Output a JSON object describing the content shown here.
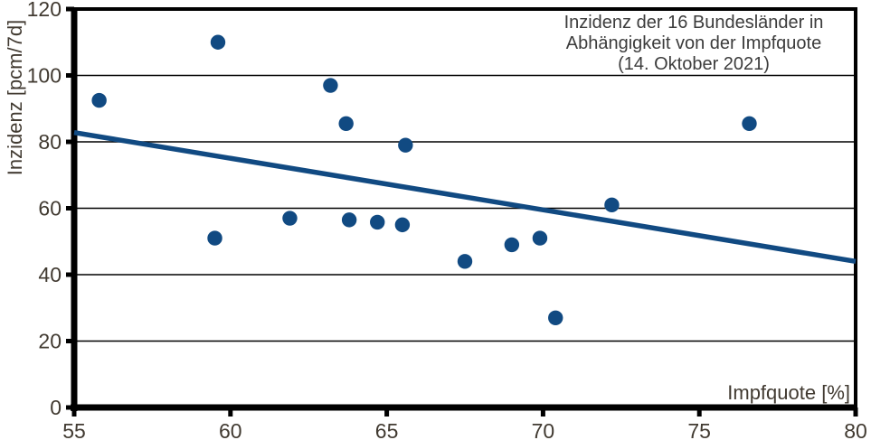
{
  "chart_data": {
    "type": "scatter",
    "title": "Inzidenz der 16 Bundesländer in Abhängigkeit von der Impfquote (14. Oktober 2021)",
    "title_lines": [
      "Inzidenz der 16 Bundesländer in",
      "Abhängigkeit von der Impfquote",
      "(14. Oktober 2021)"
    ],
    "xlabel": "Impfquote [%]",
    "ylabel": "Inzidenz [pcm/7d]",
    "xlim": [
      55,
      80
    ],
    "ylim": [
      0,
      120
    ],
    "x_ticks": [
      55,
      60,
      65,
      70,
      75,
      80
    ],
    "y_ticks": [
      0,
      20,
      40,
      60,
      80,
      100,
      120
    ],
    "grid": "horizontal",
    "legend": "none",
    "series": [
      {
        "name": "Bundesländer",
        "points": [
          [
            55.8,
            92.5
          ],
          [
            59.5,
            51
          ],
          [
            59.6,
            110
          ],
          [
            61.9,
            57
          ],
          [
            63.2,
            97
          ],
          [
            63.7,
            85.5
          ],
          [
            63.8,
            56.5
          ],
          [
            64.7,
            55.8
          ],
          [
            65.5,
            55
          ],
          [
            65.6,
            79
          ],
          [
            67.5,
            44
          ],
          [
            69.0,
            49
          ],
          [
            69.9,
            51
          ],
          [
            70.4,
            27
          ],
          [
            72.2,
            61
          ],
          [
            76.6,
            85.5
          ]
        ]
      }
    ],
    "trend_line": {
      "x1": 55,
      "y1": 82.8,
      "x2": 80,
      "y2": 44
    },
    "colors": {
      "series": "#114a82",
      "trend": "#114a82",
      "axis": "#000000",
      "grid": "#000000",
      "text": "#3c3c3c",
      "tick_text": "#413a31",
      "background": "#ffffff"
    }
  }
}
